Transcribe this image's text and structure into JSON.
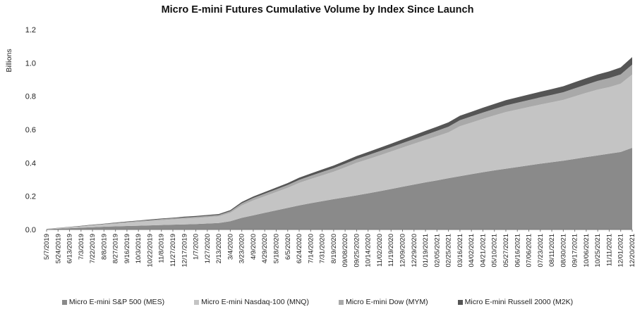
{
  "chart_data": {
    "type": "area",
    "stacked": true,
    "title": "Micro E-mini Futures Cumulative Volume by Index Since Launch",
    "ylabel": "Billions",
    "xlabel": "",
    "ylim": [
      0,
      1.2
    ],
    "yticks": [
      "0.0",
      "0.2",
      "0.4",
      "0.6",
      "0.8",
      "1.0",
      "1.2"
    ],
    "grid": false,
    "legend_position": "bottom",
    "x": [
      "5/7/2019",
      "5/24/2019",
      "6/13/2019",
      "7/3/2019",
      "7/22/2019",
      "8/8/2019",
      "8/27/2019",
      "9/16/2019",
      "10/3/2019",
      "10/22/2019",
      "11/8/2019",
      "11/27/2019",
      "12/17/2019",
      "1/7/2020",
      "1/27/2020",
      "2/13/2020",
      "3/4/2020",
      "3/23/2020",
      "4/9/2020",
      "4/29/2020",
      "5/18/2020",
      "6/5/2020",
      "6/24/2020",
      "7/14/2020",
      "7/31/2020",
      "8/19/2020",
      "09/08/2020",
      "09/25/2020",
      "10/14/2020",
      "11/02/2020",
      "11/19/2020",
      "12/09/2020",
      "12/29/2020",
      "01/19/2021",
      "02/05/2021",
      "02/25/2021",
      "03/16/2021",
      "04/02/2021",
      "04/21/2021",
      "05/10/2021",
      "05/27/2021",
      "06/16/2021",
      "07/06/2021",
      "07/23/2021",
      "08/11/2021",
      "08/30/2021",
      "09/17/2021",
      "10/06/2021",
      "10/25/2021",
      "11/11/2021",
      "12/01/2021",
      "12/20/2021"
    ],
    "series": [
      {
        "name": "Micro E-mini S&P 500 (MES)",
        "color": "#8a8a8a",
        "values": [
          0.002,
          0.005,
          0.008,
          0.011,
          0.014,
          0.017,
          0.019,
          0.021,
          0.023,
          0.025,
          0.027,
          0.029,
          0.031,
          0.033,
          0.036,
          0.039,
          0.05,
          0.07,
          0.085,
          0.1,
          0.115,
          0.13,
          0.145,
          0.158,
          0.17,
          0.182,
          0.193,
          0.205,
          0.217,
          0.23,
          0.243,
          0.257,
          0.27,
          0.283,
          0.295,
          0.308,
          0.32,
          0.332,
          0.344,
          0.355,
          0.365,
          0.375,
          0.385,
          0.395,
          0.404,
          0.413,
          0.424,
          0.435,
          0.445,
          0.455,
          0.465,
          0.49
        ]
      },
      {
        "name": "Micro E-mini Nasdaq-100 (MNQ)",
        "color": "#c4c4c4",
        "values": [
          0.001,
          0.003,
          0.005,
          0.007,
          0.01,
          0.013,
          0.016,
          0.02,
          0.023,
          0.026,
          0.029,
          0.032,
          0.034,
          0.036,
          0.038,
          0.04,
          0.05,
          0.075,
          0.09,
          0.1,
          0.11,
          0.12,
          0.135,
          0.145,
          0.155,
          0.165,
          0.18,
          0.195,
          0.205,
          0.215,
          0.225,
          0.235,
          0.245,
          0.255,
          0.265,
          0.275,
          0.3,
          0.31,
          0.32,
          0.33,
          0.34,
          0.345,
          0.35,
          0.355,
          0.36,
          0.365,
          0.375,
          0.385,
          0.395,
          0.4,
          0.41,
          0.44
        ]
      },
      {
        "name": "Micro E-mini Dow (MYM)",
        "color": "#a9a9a9",
        "values": [
          0.0005,
          0.001,
          0.0015,
          0.002,
          0.003,
          0.003,
          0.004,
          0.004,
          0.005,
          0.005,
          0.006,
          0.006,
          0.007,
          0.007,
          0.008,
          0.008,
          0.01,
          0.012,
          0.014,
          0.015,
          0.016,
          0.017,
          0.018,
          0.019,
          0.02,
          0.021,
          0.022,
          0.023,
          0.024,
          0.025,
          0.026,
          0.027,
          0.028,
          0.03,
          0.032,
          0.034,
          0.036,
          0.037,
          0.038,
          0.039,
          0.04,
          0.041,
          0.042,
          0.043,
          0.044,
          0.046,
          0.048,
          0.05,
          0.052,
          0.054,
          0.056,
          0.06
        ]
      },
      {
        "name": "Micro E-mini Russell 2000 (M2K)",
        "color": "#555555",
        "values": [
          0.0005,
          0.001,
          0.0015,
          0.002,
          0.002,
          0.002,
          0.003,
          0.003,
          0.003,
          0.004,
          0.004,
          0.004,
          0.005,
          0.005,
          0.005,
          0.006,
          0.006,
          0.008,
          0.009,
          0.01,
          0.011,
          0.012,
          0.013,
          0.014,
          0.015,
          0.016,
          0.017,
          0.018,
          0.019,
          0.02,
          0.021,
          0.022,
          0.023,
          0.024,
          0.025,
          0.026,
          0.027,
          0.028,
          0.029,
          0.03,
          0.031,
          0.032,
          0.033,
          0.034,
          0.035,
          0.036,
          0.037,
          0.038,
          0.039,
          0.04,
          0.042,
          0.045
        ]
      }
    ]
  }
}
